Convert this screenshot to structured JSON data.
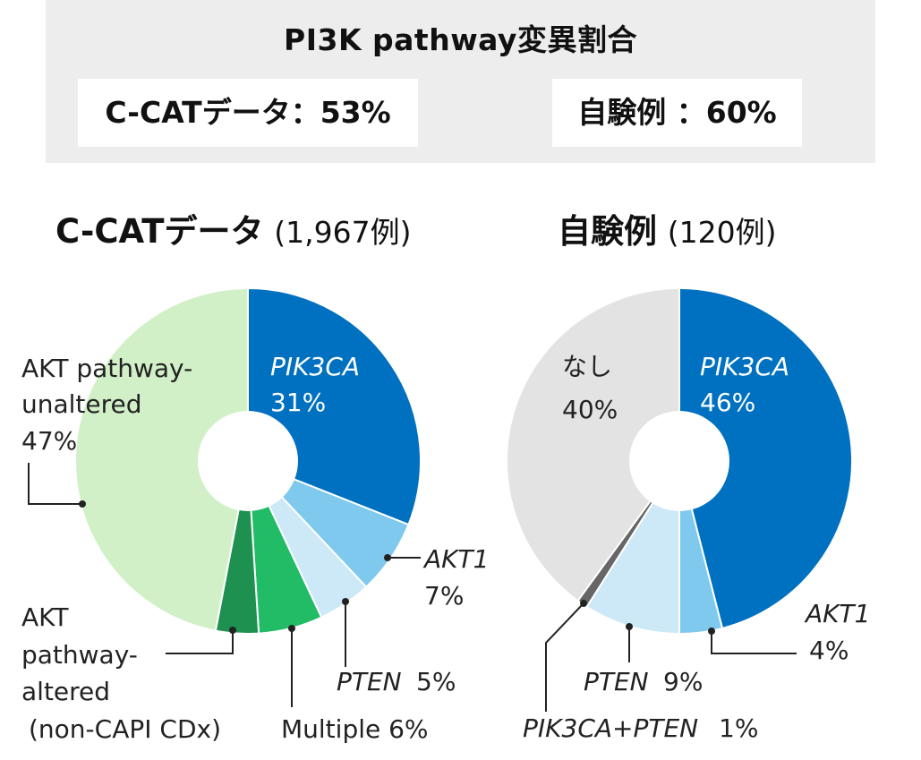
{
  "header": {
    "title": "PI3K pathway変異割合",
    "stat_left": "C-CATデータ：53%",
    "stat_right": "自験例 ：60%"
  },
  "chart_data": [
    {
      "type": "pie",
      "title": "C-CATデータ",
      "subtitle": "(1,967例)",
      "slices": [
        {
          "name": "PIK3CA",
          "value": 31,
          "label": "31%",
          "color": "#0070c0"
        },
        {
          "name": "AKT1",
          "value": 7,
          "label": "7%",
          "color": "#7fc8ee"
        },
        {
          "name": "PTEN",
          "value": 5,
          "label": "5%",
          "color": "#cde8f7"
        },
        {
          "name": "Multiple",
          "value": 6,
          "label": "6%",
          "color": "#22bb66"
        },
        {
          "name": "AKT pathway-altered (non-CAPI CDx)",
          "value": 4,
          "label": "",
          "color": "#1e9050"
        },
        {
          "name": "AKT pathway-unaltered",
          "value": 47,
          "label": "47%",
          "color": "#d2f0c8"
        }
      ]
    },
    {
      "type": "pie",
      "title": "自験例",
      "subtitle": "(120例)",
      "slices": [
        {
          "name": "PIK3CA",
          "value": 46,
          "label": "46%",
          "color": "#0070c0"
        },
        {
          "name": "AKT1",
          "value": 4,
          "label": "4%",
          "color": "#7fc8ee"
        },
        {
          "name": "PTEN",
          "value": 9,
          "label": "9%",
          "color": "#cde8f7"
        },
        {
          "name": "PIK3CA+PTEN",
          "value": 1,
          "label": "1%",
          "color": "#666666"
        },
        {
          "name": "なし",
          "value": 40,
          "label": "40%",
          "color": "#e3e3e3"
        }
      ]
    }
  ],
  "labels": {
    "left": {
      "pik3ca_name": "PIK3CA",
      "pik3ca_pct": "31%",
      "akt1_name": "AKT1",
      "akt1_pct": "7%",
      "pten_name": "PTEN",
      "pten_pct": "5%",
      "multiple_text": "Multiple 6%",
      "altered_line1": "AKT",
      "altered_line2": "pathway-",
      "altered_line3": "altered",
      "altered_line4": "(non-CAPI CDx)",
      "unaltered_line1": "AKT pathway-",
      "unaltered_line2": "unaltered",
      "unaltered_line3": "47%"
    },
    "right": {
      "pik3ca_name": "PIK3CA",
      "pik3ca_pct": "46%",
      "akt1_name": "AKT1",
      "akt1_pct": "4%",
      "pten_name": "PTEN",
      "pten_pct": "9%",
      "combo_name": "PIK3CA+PTEN",
      "combo_pct": "1%",
      "none_name": "なし",
      "none_pct": "40%"
    }
  }
}
